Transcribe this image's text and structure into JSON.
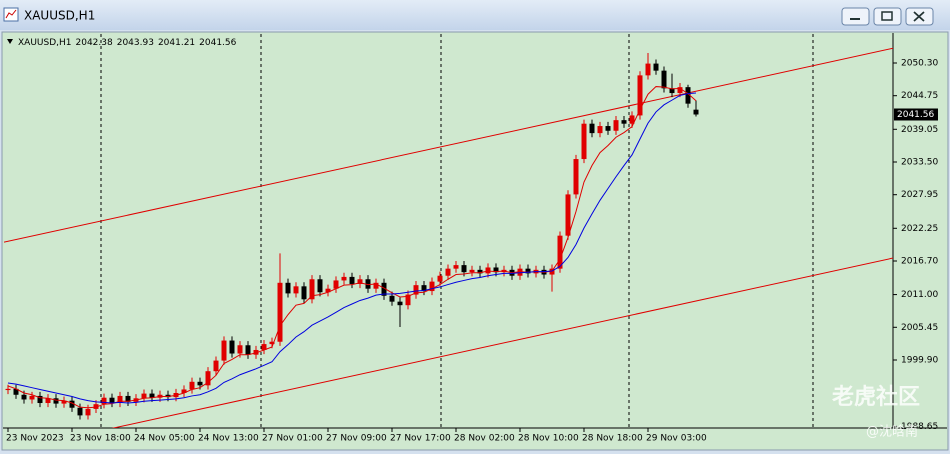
{
  "window": {
    "title": "XAUUSD,H1"
  },
  "watermark": [
    "老虎社区",
    "@沈晗南"
  ],
  "chart_data": {
    "type": "candlestick",
    "title": "XAUUSD,H1",
    "categories": [
      "23 Nov 2023",
      null,
      null,
      null,
      null,
      null,
      null,
      null,
      "23 Nov 18:00",
      null,
      null,
      null,
      null,
      null,
      null,
      null,
      "24 Nov 05:00",
      null,
      null,
      null,
      null,
      null,
      null,
      null,
      "24 Nov 13:00",
      null,
      null,
      null,
      null,
      null,
      null,
      null,
      "27 Nov 01:00",
      null,
      null,
      null,
      null,
      null,
      null,
      null,
      "27 Nov 09:00",
      null,
      null,
      null,
      null,
      null,
      null,
      null,
      "27 Nov 17:00",
      null,
      null,
      null,
      null,
      null,
      null,
      null,
      "28 Nov 02:00",
      null,
      null,
      null,
      null,
      null,
      null,
      null,
      "28 Nov 10:00",
      null,
      null,
      null,
      null,
      null,
      null,
      null,
      "28 Nov 18:00",
      null,
      null,
      null,
      null,
      null,
      null,
      null,
      "29 Nov 03:00",
      null,
      null,
      null,
      null,
      null,
      null
    ],
    "open": [
      1994.8,
      1995.0,
      1994.0,
      1993.2,
      1993.8,
      1992.6,
      1993.4,
      1992.5,
      1993.0,
      1991.8,
      1990.5,
      1991.6,
      1992.4,
      1993.5,
      1992.6,
      1993.8,
      1992.8,
      1993.4,
      1994.2,
      1993.5,
      1994.0,
      1993.6,
      1994.3,
      1994.9,
      1996.2,
      1995.6,
      1998.0,
      1999.8,
      2003.2,
      2001.0,
      2002.4,
      2000.8,
      2001.6,
      2002.6,
      2003.0,
      2013.0,
      2011.2,
      2012.4,
      2010.2,
      2013.6,
      2011.4,
      2012.0,
      2013.4,
      2014.0,
      2012.8,
      2013.6,
      2012.0,
      2013.0,
      2010.8,
      2009.8,
      2009.2,
      2011.0,
      2012.6,
      2011.6,
      2013.2,
      2014.2,
      2015.4,
      2016.0,
      2014.8,
      2015.2,
      2014.6,
      2015.6,
      2014.8,
      2015.2,
      2014.2,
      2015.4,
      2014.6,
      2015.2,
      2014.4,
      2015.4,
      2021.0,
      2028.0,
      2034.0,
      2040.0,
      2038.4,
      2039.6,
      2038.8,
      2040.6,
      2040.0,
      2041.4,
      2048.2,
      2050.2,
      2049.0,
      2046.0,
      2045.2,
      2046.2,
      2042.38
    ],
    "high": [
      1995.7,
      1995.7,
      1994.7,
      1994.5,
      1994.5,
      1994.1,
      1994.1,
      1993.7,
      1993.7,
      1992.5,
      1992.3,
      1993.1,
      1994.2,
      1994.2,
      1994.5,
      1994.5,
      1994.1,
      1994.9,
      1994.9,
      1994.7,
      1994.7,
      1995.0,
      1995.6,
      1996.9,
      1996.9,
      1998.7,
      2000.5,
      2003.9,
      2003.9,
      2003.1,
      2003.1,
      2002.3,
      2003.3,
      2003.7,
      2018.0,
      2013.7,
      2013.1,
      2013.1,
      2014.3,
      2014.3,
      2012.7,
      2014.1,
      2014.7,
      2014.7,
      2014.3,
      2014.3,
      2013.7,
      2013.7,
      2011.5,
      2010.5,
      2011.7,
      2013.3,
      2013.3,
      2013.9,
      2014.9,
      2016.1,
      2016.7,
      2016.7,
      2015.9,
      2015.9,
      2016.3,
      2016.3,
      2015.9,
      2015.9,
      2016.1,
      2016.1,
      2015.9,
      2015.9,
      2016.1,
      2021.7,
      2028.7,
      2034.7,
      2040.7,
      2040.7,
      2040.3,
      2040.3,
      2041.3,
      2041.3,
      2042.1,
      2048.9,
      2052.0,
      2050.9,
      2049.7,
      2048.5,
      2046.9,
      2046.6,
      2043.93
    ],
    "low": [
      1994.1,
      1993.3,
      1992.5,
      1992.5,
      1991.9,
      1991.9,
      1991.8,
      1991.8,
      1991.1,
      1989.8,
      1989.8,
      1990.9,
      1991.7,
      1991.9,
      1991.9,
      1992.1,
      1992.1,
      1992.7,
      1992.8,
      1992.8,
      1992.9,
      1992.9,
      1993.6,
      1994.2,
      1994.9,
      1994.9,
      1997.3,
      1999.1,
      2000.3,
      2000.3,
      2000.1,
      2000.1,
      2000.9,
      2001.9,
      2002.3,
      2010.5,
      2010.5,
      2009.5,
      2009.5,
      2010.7,
      2010.7,
      2011.3,
      2012.7,
      2012.1,
      2012.1,
      2011.3,
      2011.3,
      2010.1,
      2009.1,
      2005.5,
      2008.5,
      2010.3,
      2010.9,
      2010.9,
      2012.5,
      2013.5,
      2014.7,
      2014.1,
      2014.1,
      2013.9,
      2013.9,
      2014.1,
      2014.1,
      2013.5,
      2013.5,
      2013.9,
      2013.9,
      2013.7,
      2011.5,
      2014.7,
      2020.3,
      2027.3,
      2033.3,
      2037.7,
      2037.7,
      2038.1,
      2038.1,
      2039.3,
      2039.3,
      2040.7,
      2047.5,
      2048.3,
      2045.3,
      2044.5,
      2044.5,
      2042.7,
      2041.21
    ],
    "close": [
      1995.0,
      1994.0,
      1993.2,
      1993.8,
      1992.6,
      1993.4,
      1992.5,
      1993.0,
      1991.8,
      1990.5,
      1991.6,
      1992.4,
      1993.5,
      1992.6,
      1993.8,
      1992.8,
      1993.4,
      1994.2,
      1993.5,
      1994.0,
      1993.6,
      1994.3,
      1994.9,
      1996.2,
      1995.6,
      1998.0,
      1999.8,
      2003.2,
      2001.0,
      2002.4,
      2000.8,
      2001.6,
      2002.6,
      2003.0,
      2013.0,
      2011.2,
      2012.4,
      2010.2,
      2013.6,
      2011.4,
      2012.0,
      2013.4,
      2014.0,
      2012.8,
      2013.6,
      2012.0,
      2013.0,
      2010.8,
      2009.8,
      2009.2,
      2011.0,
      2012.6,
      2011.6,
      2013.2,
      2014.2,
      2015.4,
      2016.0,
      2014.8,
      2015.2,
      2014.6,
      2015.6,
      2014.8,
      2015.2,
      2014.2,
      2015.4,
      2014.6,
      2015.2,
      2014.4,
      2015.4,
      2021.0,
      2028.0,
      2034.0,
      2040.0,
      2038.4,
      2039.6,
      2038.8,
      2040.6,
      2040.0,
      2041.4,
      2048.2,
      2050.2,
      2049.0,
      2046.0,
      2045.2,
      2046.2,
      2043.4,
      2041.56
    ],
    "up_color": "#e00000",
    "down_color": "#000000",
    "ma": [
      {
        "color": "#e00000",
        "values": [
          1995.5,
          1995.0,
          1994.3,
          1994.0,
          1993.5,
          1993.4,
          1993.1,
          1993.0,
          1992.6,
          1991.9,
          1991.8,
          1991.9,
          1992.4,
          1992.5,
          1992.9,
          1992.9,
          1993.1,
          1993.4,
          1993.5,
          1993.7,
          1993.7,
          1993.9,
          1994.3,
          1994.9,
          1995.2,
          1996.1,
          1997.3,
          1999.3,
          2000.0,
          2000.8,
          2000.8,
          2001.1,
          2001.6,
          2002.1,
          2005.7,
          2007.6,
          2009.2,
          2009.5,
          2010.8,
          2011.0,
          2011.4,
          2012.0,
          2012.6,
          2012.7,
          2013.0,
          2012.7,
          2012.8,
          2012.1,
          2011.3,
          2010.6,
          2010.7,
          2011.3,
          2011.4,
          2012.0,
          2012.7,
          2013.6,
          2014.4,
          2014.5,
          2014.7,
          2014.7,
          2015.0,
          2014.9,
          2015.0,
          2014.7,
          2014.9,
          2014.8,
          2014.9,
          2014.8,
          2015.0,
          2017.0,
          2020.7,
          2025.1,
          2030.1,
          2032.9,
          2035.1,
          2036.3,
          2037.7,
          2038.5,
          2039.5,
          2042.4,
          2045.0,
          2046.3,
          2046.2,
          2045.9,
          2046.0,
          2045.1,
          2043.9
        ]
      },
      {
        "color": "#0000e0",
        "values": [
          1996.0,
          1995.8,
          1995.5,
          1995.2,
          1994.9,
          1994.6,
          1994.3,
          1994.0,
          1993.7,
          1993.3,
          1993.0,
          1992.8,
          1992.7,
          1992.6,
          1992.7,
          1992.6,
          1992.7,
          1992.9,
          1993.0,
          1993.1,
          1993.2,
          1993.3,
          1993.5,
          1993.8,
          1994.0,
          1994.5,
          1995.1,
          1996.1,
          1996.7,
          1997.4,
          1997.9,
          1998.4,
          1999.0,
          1999.6,
          2001.3,
          2002.5,
          2003.8,
          2004.7,
          2005.8,
          2006.5,
          2007.2,
          2008.0,
          2008.8,
          2009.4,
          2010.0,
          2010.4,
          2010.9,
          2011.1,
          2011.1,
          2011.2,
          2011.4,
          2011.6,
          2011.7,
          2012.0,
          2012.3,
          2012.7,
          2013.1,
          2013.4,
          2013.7,
          2013.9,
          2014.2,
          2014.4,
          2014.6,
          2014.6,
          2014.7,
          2014.8,
          2014.9,
          2014.9,
          2015.0,
          2015.8,
          2017.3,
          2019.5,
          2022.3,
          2024.7,
          2027.0,
          2029.0,
          2031.0,
          2032.9,
          2034.7,
          2037.4,
          2040.1,
          2042.0,
          2043.2,
          2044.0,
          2044.8,
          2045.1,
          2045.2
        ]
      }
    ],
    "channels": [
      {
        "color": "#e00000",
        "values": [
          2019.9,
          2052.8
        ]
      },
      {
        "color": "#e00000",
        "values": [
          1984.3,
          2017.2
        ]
      }
    ],
    "ylim": [
      1988.36,
      2055.22
    ],
    "yticks": [
      {
        "value": 2050.3,
        "label": "2050.30"
      },
      2044.75,
      2039.05,
      {
        "value": 2033.5,
        "label": "2033.50"
      },
      2027.95,
      2022.25,
      {
        "value": 2016.7,
        "label": "2016.70"
      },
      {
        "value": 2011,
        "label": "2011.00"
      },
      2005.45,
      {
        "value": 1999.9,
        "label": "1999.90"
      },
      1988.65
    ],
    "grid": false,
    "background": "#cfe8cf"
  }
}
